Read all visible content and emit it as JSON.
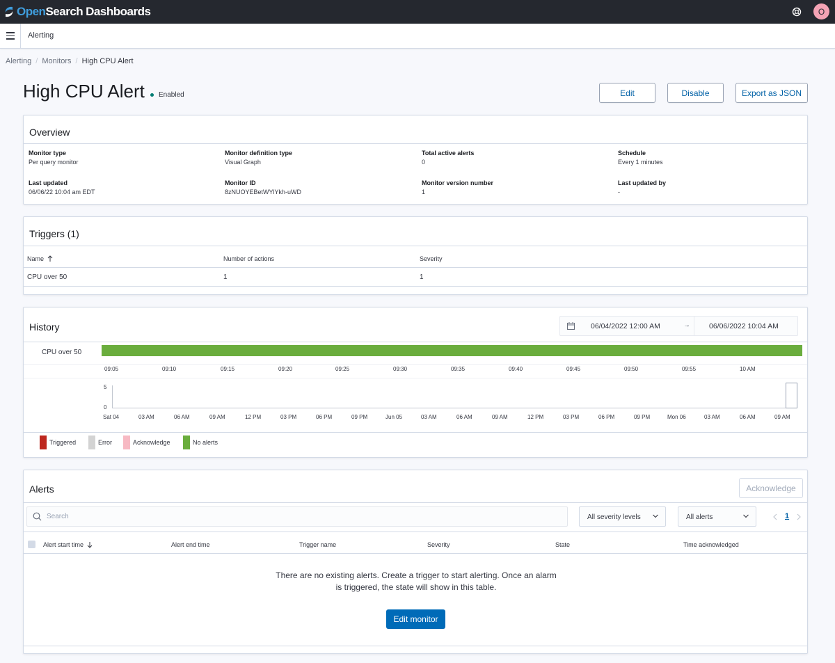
{
  "topbar": {
    "brand_open": "Open",
    "brand_search": "Search",
    "brand_dashboards": "Dashboards",
    "avatar_initial": "O",
    "help_icon": "help-icon"
  },
  "subbar": {
    "title": "Alerting"
  },
  "breadcrumb": [
    "Alerting",
    "Monitors",
    "High CPU Alert"
  ],
  "header": {
    "title": "High CPU Alert",
    "status": "Enabled",
    "status_color": "#017d73",
    "buttons": {
      "edit": "Edit",
      "disable": "Disable",
      "export": "Export as JSON"
    }
  },
  "overview": {
    "title": "Overview",
    "fields": [
      {
        "label": "Monitor type",
        "value": "Per query monitor"
      },
      {
        "label": "Monitor definition type",
        "value": "Visual Graph"
      },
      {
        "label": "Total active alerts",
        "value": "0"
      },
      {
        "label": "Schedule",
        "value": "Every 1 minutes"
      },
      {
        "label": "Last updated",
        "value": "06/06/22 10:04 am EDT"
      },
      {
        "label": "Monitor ID",
        "value": "8zNUOYEBetWYlYkh-uWD"
      },
      {
        "label": "Monitor version number",
        "value": "1"
      },
      {
        "label": "Last updated by",
        "value": "-"
      }
    ]
  },
  "triggers": {
    "title": "Triggers (1)",
    "columns": [
      "Name",
      "Number of actions",
      "Severity"
    ],
    "rows": [
      {
        "name": "CPU over 50",
        "actions": "1",
        "severity": "1"
      }
    ]
  },
  "history": {
    "title": "History",
    "date_start": "06/04/2022 12:00 AM",
    "date_end": "06/06/2022 10:04 AM",
    "arrow": "→",
    "trigger_label": "CPU over 50",
    "no_alerts_color": "#6aad3d",
    "top_ticks": [
      "09:05",
      "09:10",
      "09:15",
      "09:20",
      "09:25",
      "09:30",
      "09:35",
      "09:40",
      "09:45",
      "09:50",
      "09:55",
      "10 AM"
    ],
    "y_ticks": [
      "5",
      "0"
    ],
    "bottom_ticks": [
      "Sat 04",
      "03 AM",
      "06 AM",
      "09 AM",
      "12 PM",
      "03 PM",
      "06 PM",
      "09 PM",
      "Jun 05",
      "03 AM",
      "06 AM",
      "09 AM",
      "12 PM",
      "03 PM",
      "06 PM",
      "09 PM",
      "Mon 06",
      "03 AM",
      "06 AM",
      "09 AM"
    ],
    "legend": [
      {
        "label": "Triggered",
        "color": "#bd271e"
      },
      {
        "label": "Error",
        "color": "#d3d3d3"
      },
      {
        "label": "Acknowledge",
        "color": "#f7b9c3"
      },
      {
        "label": "No alerts",
        "color": "#6aad3d"
      }
    ]
  },
  "alerts": {
    "title": "Alerts",
    "acknowledge": "Acknowledge",
    "search_placeholder": "Search",
    "severity_select": "All severity levels",
    "alerts_select": "All alerts",
    "page": "1",
    "columns": [
      "Alert start time",
      "Alert end time",
      "Trigger name",
      "Severity",
      "State",
      "Time acknowledged"
    ],
    "empty_line1": "There are no existing alerts. Create a trigger to start alerting. Once an alarm",
    "empty_line2": "is triggered, the state will show in this table.",
    "edit_monitor": "Edit monitor"
  }
}
